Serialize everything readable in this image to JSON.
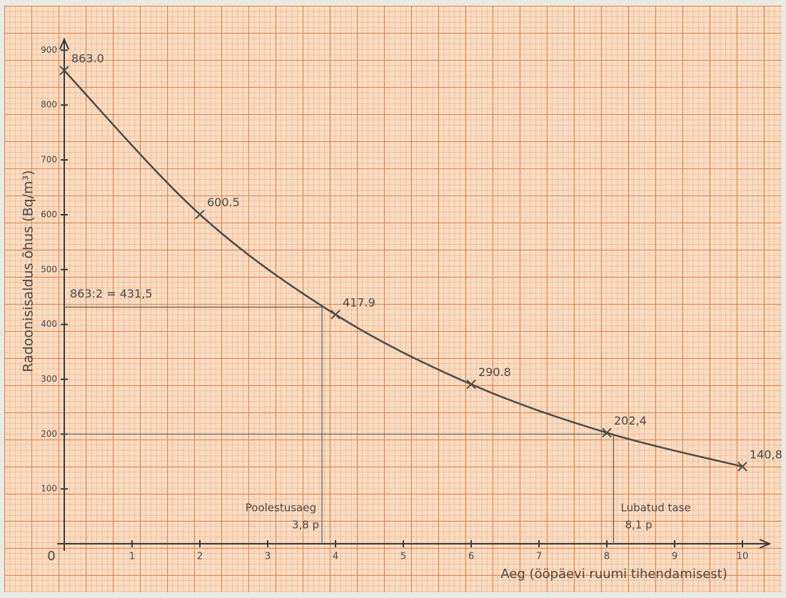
{
  "chart_data": {
    "type": "line",
    "y_label": "Radoonisisaldus õhus (Bq/m³)",
    "x_label": "Aeg (ööpäevi ruumi tihendamisest)",
    "x": [
      0,
      2,
      4,
      6,
      8,
      10
    ],
    "series": [
      {
        "color": "#4a4a4a",
        "values": [
          863.0,
          600.5,
          417.9,
          290.8,
          202.4,
          140.8
        ],
        "value_labels": [
          "863.0",
          "600.5",
          "417.9",
          "290.8",
          "202,4",
          "140,8"
        ]
      }
    ],
    "xlim": [
      0,
      10.4
    ],
    "ylim": [
      0,
      920
    ],
    "xticks": [
      0,
      1,
      2,
      3,
      4,
      5,
      6,
      7,
      8,
      9,
      10
    ],
    "yticks": [
      100,
      200,
      300,
      400,
      500,
      600,
      700,
      800,
      900
    ],
    "guides": [
      {
        "x": 3.8,
        "y": 431.5,
        "label": "863:2 = 431,5",
        "x_title": "Poolestusaeg",
        "x_label": "3,8 p"
      },
      {
        "x": 8.1,
        "y": 200,
        "x_title": "Lubatud tase",
        "x_label": "8,1 p"
      }
    ]
  }
}
